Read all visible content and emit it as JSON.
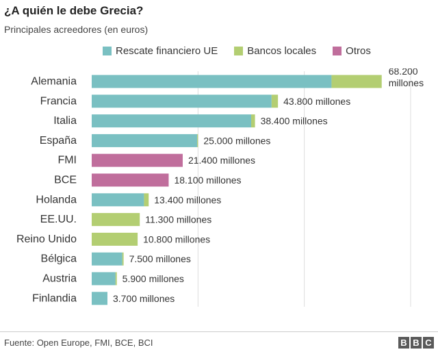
{
  "header": {
    "title": "¿A quién le debe Grecia?",
    "subtitle": "Principales acreedores (en euros)"
  },
  "footer": {
    "source": "Fuente: Open Europe, FMI, BCE, BCI",
    "logo_letters": [
      "B",
      "B",
      "C"
    ]
  },
  "chart_data": {
    "type": "bar",
    "orientation": "horizontal",
    "stacked": true,
    "title": "¿A quién le debe Grecia?",
    "subtitle": "Principales acreedores (en euros)",
    "grid": true,
    "legend_position": "top",
    "xlim": [
      0,
      75000
    ],
    "gridlines": [
      25000,
      50000,
      75000
    ],
    "categories": [
      "Alemania",
      "Francia",
      "Italia",
      "España",
      "FMI",
      "BCE",
      "Holanda",
      "EE.UU.",
      "Reino Unido",
      "Bélgica",
      "Austria",
      "Finlandia"
    ],
    "series": [
      {
        "name": "Rescate financiero UE",
        "color": "#7ac0c2",
        "values": [
          56400,
          42300,
          37500,
          24800,
          0,
          0,
          12300,
          0,
          0,
          7200,
          5600,
          3700
        ]
      },
      {
        "name": "Bancos locales",
        "color": "#b3ce72",
        "values": [
          11800,
          1500,
          900,
          200,
          0,
          0,
          1100,
          11300,
          10800,
          300,
          300,
          0
        ]
      },
      {
        "name": "Otros",
        "color": "#c06e9c",
        "values": [
          0,
          0,
          0,
          0,
          21400,
          18100,
          0,
          0,
          0,
          0,
          0,
          0
        ]
      }
    ],
    "totals": [
      68200,
      43800,
      38400,
      25000,
      21400,
      18100,
      13400,
      11300,
      10800,
      7500,
      5900,
      3700
    ],
    "value_labels": [
      "68.200 millones",
      "43.800 millones",
      "38.400 millones",
      "25.000 millones",
      "21.400 millones",
      "18.100 millones",
      "13.400 millones",
      "11.300 millones",
      "10.800 millones",
      "7.500 millones",
      "5.900 millones",
      "3.700 millones"
    ]
  }
}
